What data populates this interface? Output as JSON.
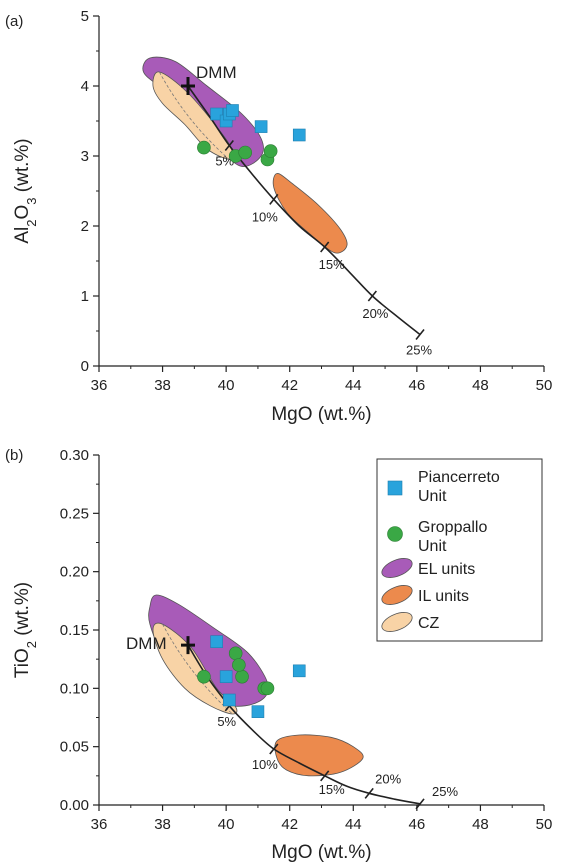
{
  "colors": {
    "piancerreto": "#29a3dc",
    "groppallo": "#3aa845",
    "el": "#a85bb8",
    "il": "#ec8a4d",
    "cz": "#f8d3a6",
    "curve": "#222222"
  },
  "legend": {
    "piancerreto": [
      "Piancerreto",
      "Unit"
    ],
    "groppallo": [
      "Groppallo",
      "Unit"
    ],
    "el": "EL units",
    "il": "IL units",
    "cz": "CZ"
  },
  "chart_data": [
    {
      "type": "scatter",
      "panel_label": "(a)",
      "xlabel": "MgO (wt.%)",
      "ylabel": "Al2O3 (wt.%)",
      "xlim": [
        36,
        50
      ],
      "ylim": [
        0,
        5
      ],
      "x_ticks": [
        "36",
        "38",
        "40",
        "42",
        "44",
        "46",
        "48",
        "50"
      ],
      "y_ticks": [
        "0",
        "1",
        "2",
        "3",
        "4",
        "5"
      ],
      "series": [
        {
          "name": "Piancerreto Unit",
          "marker": "square",
          "points": [
            [
              39.7,
              3.6
            ],
            [
              40.0,
              3.5
            ],
            [
              40.1,
              3.6
            ],
            [
              40.2,
              3.65
            ],
            [
              41.1,
              3.42
            ],
            [
              42.3,
              3.3
            ]
          ]
        },
        {
          "name": "Groppallo Unit",
          "marker": "circle",
          "points": [
            [
              39.3,
              3.12
            ],
            [
              40.3,
              3.0
            ],
            [
              40.6,
              3.05
            ],
            [
              41.3,
              2.95
            ],
            [
              41.4,
              3.07
            ]
          ]
        }
      ],
      "dmm": {
        "label": "DMM",
        "x": 38.8,
        "y": 4.0
      },
      "melting_curve": {
        "points": [
          [
            38.8,
            4.0
          ],
          [
            39.5,
            3.55
          ],
          [
            40.1,
            3.15
          ],
          [
            40.8,
            2.75
          ],
          [
            41.5,
            2.38
          ],
          [
            42.3,
            2.0
          ],
          [
            43.1,
            1.7
          ],
          [
            43.9,
            1.33
          ],
          [
            44.6,
            1.0
          ],
          [
            45.4,
            0.7
          ],
          [
            46.1,
            0.45
          ]
        ],
        "ticks": [
          {
            "label": "5%",
            "x": 40.1,
            "y": 3.15
          },
          {
            "label": "10%",
            "x": 41.5,
            "y": 2.38
          },
          {
            "label": "15%",
            "x": 43.1,
            "y": 1.7
          },
          {
            "label": "20%",
            "x": 44.6,
            "y": 1.0
          },
          {
            "label": "25%",
            "x": 46.1,
            "y": 0.45
          }
        ]
      },
      "fields": [
        {
          "name": "EL units",
          "color_key": "el",
          "outline": [
            [
              37.4,
              4.2
            ],
            [
              37.6,
              4.4
            ],
            [
              38.4,
              4.35
            ],
            [
              39.4,
              4.0
            ],
            [
              40.5,
              3.6
            ],
            [
              41.1,
              3.25
            ],
            [
              41.1,
              3.0
            ],
            [
              40.5,
              2.85
            ],
            [
              39.8,
              3.1
            ],
            [
              39.0,
              3.5
            ],
            [
              38.0,
              3.95
            ]
          ]
        },
        {
          "name": "CZ",
          "color_key": "cz",
          "outline": [
            [
              37.7,
              4.0
            ],
            [
              37.9,
              4.2
            ],
            [
              38.8,
              3.9
            ],
            [
              39.9,
              3.3
            ],
            [
              40.2,
              3.05
            ],
            [
              40.1,
              2.95
            ],
            [
              39.4,
              3.1
            ],
            [
              38.7,
              3.45
            ],
            [
              38.0,
              3.75
            ]
          ]
        },
        {
          "name": "IL units",
          "color_key": "il",
          "outline": [
            [
              41.6,
              2.75
            ],
            [
              42.1,
              2.6
            ],
            [
              42.9,
              2.3
            ],
            [
              43.6,
              1.95
            ],
            [
              43.8,
              1.72
            ],
            [
              43.4,
              1.62
            ],
            [
              42.6,
              1.9
            ],
            [
              41.9,
              2.2
            ],
            [
              41.5,
              2.55
            ]
          ]
        }
      ]
    },
    {
      "type": "scatter",
      "panel_label": "(b)",
      "xlabel": "MgO (wt.%)",
      "ylabel": "TiO2 (wt.%)",
      "xlim": [
        36,
        50
      ],
      "ylim": [
        0,
        0.3
      ],
      "x_ticks": [
        "36",
        "38",
        "40",
        "42",
        "44",
        "46",
        "48",
        "50"
      ],
      "y_ticks": [
        "0.00",
        "0.05",
        "0.10",
        "0.15",
        "0.20",
        "0.25",
        "0.30"
      ],
      "series": [
        {
          "name": "Piancerreto Unit",
          "marker": "square",
          "points": [
            [
              39.7,
              0.14
            ],
            [
              40.0,
              0.11
            ],
            [
              40.1,
              0.09
            ],
            [
              41.0,
              0.08
            ],
            [
              42.3,
              0.115
            ]
          ]
        },
        {
          "name": "Groppallo Unit",
          "marker": "circle",
          "points": [
            [
              39.3,
              0.11
            ],
            [
              40.3,
              0.13
            ],
            [
              40.5,
              0.11
            ],
            [
              40.4,
              0.12
            ],
            [
              41.2,
              0.1
            ],
            [
              41.3,
              0.1
            ]
          ]
        }
      ],
      "dmm": {
        "label": "DMM",
        "x": 38.8,
        "y": 0.137
      },
      "melting_curve": {
        "points": [
          [
            38.8,
            0.137
          ],
          [
            39.4,
            0.11
          ],
          [
            40.1,
            0.085
          ],
          [
            40.8,
            0.065
          ],
          [
            41.5,
            0.048
          ],
          [
            42.3,
            0.036
          ],
          [
            43.1,
            0.025
          ],
          [
            43.8,
            0.016
          ],
          [
            44.5,
            0.01
          ],
          [
            45.3,
            0.005
          ],
          [
            46.1,
            0.001
          ]
        ],
        "ticks": [
          {
            "label": "5%",
            "x": 40.1,
            "y": 0.085
          },
          {
            "label": "10%",
            "x": 41.5,
            "y": 0.048
          },
          {
            "label": "15%",
            "x": 43.1,
            "y": 0.025
          },
          {
            "label": "20%",
            "x": 44.5,
            "y": 0.01
          },
          {
            "label": "25%",
            "x": 46.1,
            "y": 0.001
          }
        ]
      },
      "fields": [
        {
          "name": "EL units",
          "color_key": "el",
          "outline": [
            [
              37.6,
              0.17
            ],
            [
              37.8,
              0.18
            ],
            [
              38.5,
              0.172
            ],
            [
              39.6,
              0.152
            ],
            [
              40.7,
              0.13
            ],
            [
              41.3,
              0.105
            ],
            [
              41.2,
              0.092
            ],
            [
              40.6,
              0.085
            ],
            [
              39.8,
              0.087
            ],
            [
              38.9,
              0.1
            ],
            [
              38.0,
              0.13
            ],
            [
              37.6,
              0.155
            ]
          ]
        },
        {
          "name": "CZ",
          "color_key": "cz",
          "outline": [
            [
              37.7,
              0.15
            ],
            [
              38.0,
              0.155
            ],
            [
              38.9,
              0.135
            ],
            [
              39.7,
              0.1
            ],
            [
              40.3,
              0.084
            ],
            [
              40.2,
              0.078
            ],
            [
              39.5,
              0.085
            ],
            [
              38.7,
              0.1
            ],
            [
              38.0,
              0.125
            ]
          ]
        },
        {
          "name": "IL units",
          "color_key": "il",
          "outline": [
            [
              41.6,
              0.055
            ],
            [
              42.3,
              0.06
            ],
            [
              43.3,
              0.058
            ],
            [
              44.0,
              0.05
            ],
            [
              44.3,
              0.04
            ],
            [
              43.6,
              0.028
            ],
            [
              42.6,
              0.025
            ],
            [
              41.9,
              0.03
            ],
            [
              41.6,
              0.04
            ]
          ]
        }
      ]
    }
  ]
}
